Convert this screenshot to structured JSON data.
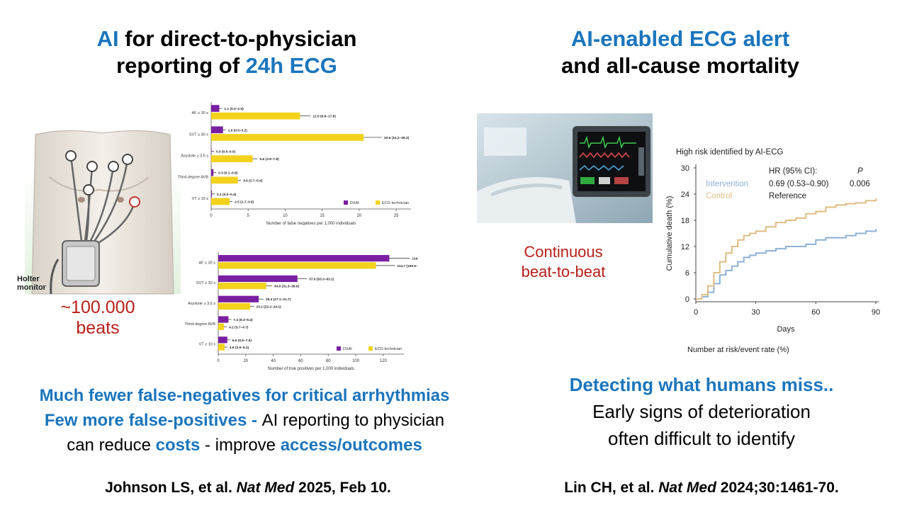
{
  "left": {
    "title_line1_accent": "AI",
    "title_line1_rest": " for direct-to-physician",
    "title_line2_rest": "reporting of ",
    "title_line2_accent": "24h ECG",
    "holter_label_line1": "Holter",
    "holter_label_line2": "monitor",
    "beats_line1": "~100.000",
    "beats_line2": "beats",
    "finding1": "Much fewer false-negatives for critical arrhythmias",
    "finding2_accent": "Few more false-positives - ",
    "finding2_rest": "AI reporting to physician",
    "finding3_pre": "can reduce ",
    "finding3_costs": "costs",
    "finding3_mid": " - improve ",
    "finding3_access": "access/outcomes",
    "citation_pre": "Johnson LS, et al. ",
    "citation_journal": "Nat Med",
    "citation_post": " 2025, Feb 10."
  },
  "right": {
    "title_line1": "AI-enabled ECG alert",
    "title_line2": "and all-cause mortality",
    "photo_caption_line1": "Continuous",
    "photo_caption_line2": "beat-to-beat",
    "km_title": "High risk identified by AI-ECG",
    "km_hr_header": "HR (95% CI):",
    "km_p_header": "P",
    "km_intervention_label": "Intervention",
    "km_control_label": "Control",
    "km_intervention_hr": "0.69 (0.53–0.90)",
    "km_intervention_p": "0.006",
    "km_control_hr": "Reference",
    "km_ylabel": "Cumulative death (%)",
    "km_xlabel": "Days",
    "km_risk_label": "Number at risk/event rate (%)",
    "finding1": "Detecting what humans miss..",
    "finding2": "Early signs of deterioration",
    "finding3": "often difficult to identify",
    "citation_pre": "Lin CH, et al. ",
    "citation_journal": "Nat Med",
    "citation_post": " 2024;30:1461-70."
  },
  "colors": {
    "accent_blue": "#1a75bc",
    "accent_red": "#b8201a",
    "dxai": "#7b1fa2",
    "technician": "#f2d21b",
    "intervention": "#8fb0d6",
    "control": "#e0bd84"
  },
  "chart_data": [
    {
      "type": "bar",
      "orientation": "horizontal",
      "categories": [
        "AF ≥ 30 s",
        "SVT ≥ 30 s",
        "Asystole ≥ 3.5 s",
        "Third-degree AVB",
        "VT ≥ 10 s"
      ],
      "series": [
        {
          "name": "DXAI",
          "values": [
            1.1,
            1.6,
            0.0,
            0.3,
            0.1
          ],
          "labels": [
            "1.1 (0.0–2.9)",
            "1.6 (0.5–3.2)",
            "0.0 (0.0–0.0)",
            "0.3 (0.1–0.8)",
            "0.1 (0.0–0.4)"
          ]
        },
        {
          "name": "ECG technician",
          "values": [
            12.0,
            20.6,
            5.6,
            3.6,
            2.5
          ],
          "labels": [
            "12.0 (6.8–17.6)",
            "20.6 (15.2–28.3)",
            "5.6 (3.9–7.8)",
            "3.6 (2.7–5.4)",
            "2.5 (1.7–3.6)"
          ]
        }
      ],
      "xlabel": "Number of false negatives per 1,000 individuals",
      "xticks": [
        0,
        5,
        10,
        15,
        20,
        25
      ],
      "xlim": [
        0,
        27
      ]
    },
    {
      "type": "bar",
      "orientation": "horizontal",
      "categories": [
        "AF ≥ 30 s",
        "SVT ≥ 30 s",
        "Asystole ≥ 3.5 s",
        "Third-degree AVB",
        "VT ≥ 10 s"
      ],
      "series": [
        {
          "name": "DXAI",
          "values": [
            124.4,
            57.6,
            29.4,
            7.4,
            6.6
          ],
          "labels": [
            "124.4 (117.0–131.1)",
            "57.6 (53.3–63.1)",
            "29.4 (27.1–31.7)",
            "7.4 (6.3–9.4)",
            "6.6 (5.6–7.6)"
          ]
        },
        {
          "name": "ECG technician",
          "values": [
            114.7,
            34.9,
            23.2,
            4.2,
            4.6
          ],
          "labels": [
            "114.7 (109.5–119.9)",
            "34.9 (31.3–38.6)",
            "23.2 (22.2–24.1)",
            "4.2 (3.7–4.7)",
            "4.6 (3.9–5.2)"
          ]
        }
      ],
      "xlabel": "Number of true positives per 1,000 individuals",
      "xticks": [
        0,
        20,
        40,
        60,
        80,
        100,
        120
      ],
      "xlim": [
        0,
        135
      ]
    },
    {
      "type": "line",
      "title": "High risk identified by AI-ECG",
      "xlabel": "Days",
      "ylabel": "Cumulative death (%)",
      "xticks": [
        0,
        30,
        60,
        90
      ],
      "yticks": [
        0,
        6,
        12,
        18,
        24,
        30
      ],
      "xlim": [
        0,
        90
      ],
      "ylim": [
        0,
        30
      ],
      "series": [
        {
          "name": "Intervention",
          "x": [
            0,
            3,
            6,
            9,
            12,
            15,
            18,
            21,
            24,
            27,
            30,
            35,
            40,
            45,
            50,
            55,
            60,
            65,
            70,
            75,
            80,
            85,
            90
          ],
          "y": [
            0,
            0.5,
            1.5,
            3.5,
            5.5,
            6.5,
            7.5,
            8.5,
            9.5,
            10,
            10.5,
            11,
            11.5,
            12,
            12,
            12.5,
            13.5,
            14,
            14,
            14.5,
            15,
            15.5,
            16
          ]
        },
        {
          "name": "Control",
          "x": [
            0,
            3,
            6,
            9,
            12,
            15,
            18,
            21,
            24,
            27,
            30,
            35,
            40,
            45,
            50,
            55,
            60,
            65,
            70,
            75,
            80,
            85,
            90
          ],
          "y": [
            0,
            1,
            3,
            6,
            8.5,
            10.5,
            12,
            13.5,
            14.5,
            15,
            15.5,
            16.5,
            17.5,
            18,
            18.5,
            19.5,
            20,
            21,
            21.5,
            21.8,
            22,
            22.5,
            23
          ]
        }
      ]
    }
  ]
}
